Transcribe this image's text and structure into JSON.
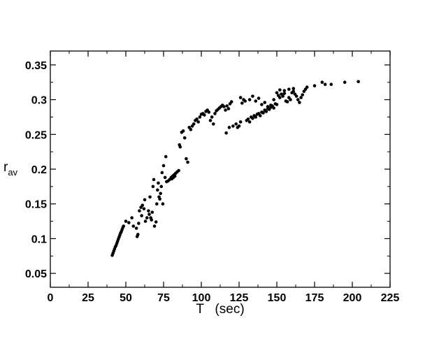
{
  "chart_data": {
    "type": "scatter",
    "title": "",
    "xlabel": "T   (sec)",
    "ylabel": {
      "main": "r",
      "sub": "av"
    },
    "xlim": [
      0,
      225
    ],
    "ylim": [
      0.03,
      0.37
    ],
    "xticks": [
      0,
      25,
      50,
      75,
      100,
      125,
      150,
      175,
      200,
      225
    ],
    "xtick_labels": [
      "0",
      "25",
      "50",
      "75",
      "100",
      "125",
      "150",
      "175",
      "200",
      "225"
    ],
    "yticks": [
      0.05,
      0.1,
      0.15,
      0.2,
      0.25,
      0.3,
      0.35
    ],
    "ytick_labels": [
      "0.05",
      "0.1",
      "0.15",
      "0.2",
      "0.25",
      "0.3",
      "0.35"
    ],
    "grid": false,
    "legend": "none",
    "marker_color": "#000000",
    "series": [
      {
        "points": [
          [
            41,
            0.076
          ],
          [
            41.5,
            0.079
          ],
          [
            42,
            0.082
          ],
          [
            42.5,
            0.085
          ],
          [
            43,
            0.088
          ],
          [
            43.5,
            0.09
          ],
          [
            44,
            0.093
          ],
          [
            44.5,
            0.096
          ],
          [
            45,
            0.099
          ],
          [
            45.5,
            0.102
          ],
          [
            46,
            0.105
          ],
          [
            46.5,
            0.108
          ],
          [
            47,
            0.11
          ],
          [
            47.5,
            0.113
          ],
          [
            48,
            0.116
          ],
          [
            48.5,
            0.118
          ],
          [
            50,
            0.125
          ],
          [
            52,
            0.123
          ],
          [
            54,
            0.13
          ],
          [
            55,
            0.118
          ],
          [
            57,
            0.115
          ],
          [
            57.5,
            0.103
          ],
          [
            58,
            0.106
          ],
          [
            58.5,
            0.122
          ],
          [
            59,
            0.14
          ],
          [
            60,
            0.145
          ],
          [
            60.5,
            0.133
          ],
          [
            61,
            0.148
          ],
          [
            62,
            0.143
          ],
          [
            62.5,
            0.156
          ],
          [
            63,
            0.125
          ],
          [
            64,
            0.13
          ],
          [
            65,
            0.14
          ],
          [
            65.5,
            0.135
          ],
          [
            66,
            0.16
          ],
          [
            66.5,
            0.13
          ],
          [
            67,
            0.127
          ],
          [
            67.5,
            0.138
          ],
          [
            68,
            0.175
          ],
          [
            68.5,
            0.185
          ],
          [
            69,
            0.118
          ],
          [
            70,
            0.124
          ],
          [
            70.5,
            0.15
          ],
          [
            71,
            0.17
          ],
          [
            71.5,
            0.18
          ],
          [
            72,
            0.16
          ],
          [
            72.5,
            0.157
          ],
          [
            73,
            0.165
          ],
          [
            73.5,
            0.175
          ],
          [
            74,
            0.195
          ],
          [
            74.5,
            0.15
          ],
          [
            75,
            0.205
          ],
          [
            76,
            0.188
          ],
          [
            76.5,
            0.218
          ],
          [
            77,
            0.182
          ],
          [
            78,
            0.183
          ],
          [
            79,
            0.185
          ],
          [
            80,
            0.188
          ],
          [
            80.5,
            0.186
          ],
          [
            81,
            0.19
          ],
          [
            81.5,
            0.188
          ],
          [
            82,
            0.192
          ],
          [
            82.5,
            0.19
          ],
          [
            83,
            0.194
          ],
          [
            84,
            0.196
          ],
          [
            85,
            0.198
          ],
          [
            85.5,
            0.235
          ],
          [
            86,
            0.232
          ],
          [
            87,
            0.253
          ],
          [
            88,
            0.255
          ],
          [
            89,
            0.245
          ],
          [
            90,
            0.215
          ],
          [
            91,
            0.21
          ],
          [
            92,
            0.26
          ],
          [
            93,
            0.257
          ],
          [
            94,
            0.262
          ],
          [
            95,
            0.265
          ],
          [
            96,
            0.27
          ],
          [
            97,
            0.272
          ],
          [
            98,
            0.268
          ],
          [
            99,
            0.275
          ],
          [
            100,
            0.279
          ],
          [
            101,
            0.28
          ],
          [
            102,
            0.278
          ],
          [
            103,
            0.283
          ],
          [
            104,
            0.285
          ],
          [
            105,
            0.282
          ],
          [
            106,
            0.27
          ],
          [
            107,
            0.275
          ],
          [
            108,
            0.265
          ],
          [
            109,
            0.28
          ],
          [
            110,
            0.284
          ],
          [
            111,
            0.286
          ],
          [
            112,
            0.288
          ],
          [
            113,
            0.29
          ],
          [
            114,
            0.292
          ],
          [
            115,
            0.29
          ],
          [
            116,
            0.285
          ],
          [
            117,
            0.291
          ],
          [
            118,
            0.287
          ],
          [
            119,
            0.294
          ],
          [
            120,
            0.297
          ],
          [
            116.5,
            0.252
          ],
          [
            118.5,
            0.26
          ],
          [
            121,
            0.262
          ],
          [
            123,
            0.265
          ],
          [
            124,
            0.26
          ],
          [
            125,
            0.262
          ],
          [
            126,
            0.268
          ],
          [
            127,
            0.295
          ],
          [
            128,
            0.3
          ],
          [
            129,
            0.298
          ],
          [
            130,
            0.27
          ],
          [
            131,
            0.272
          ],
          [
            132,
            0.268
          ],
          [
            133,
            0.275
          ],
          [
            134,
            0.273
          ],
          [
            135,
            0.277
          ],
          [
            136,
            0.275
          ],
          [
            137,
            0.279
          ],
          [
            138,
            0.28
          ],
          [
            139,
            0.277
          ],
          [
            140,
            0.282
          ],
          [
            141,
            0.281
          ],
          [
            142,
            0.285
          ],
          [
            143,
            0.283
          ],
          [
            144,
            0.287
          ],
          [
            145,
            0.286
          ],
          [
            146,
            0.289
          ],
          [
            147,
            0.291
          ],
          [
            148,
            0.288
          ],
          [
            149,
            0.294
          ],
          [
            150,
            0.293
          ],
          [
            132,
            0.3
          ],
          [
            134,
            0.305
          ],
          [
            136,
            0.298
          ],
          [
            138,
            0.302
          ],
          [
            140,
            0.293
          ],
          [
            142,
            0.296
          ],
          [
            144,
            0.29
          ],
          [
            146,
            0.292
          ],
          [
            148,
            0.3
          ],
          [
            126,
            0.303
          ],
          [
            150,
            0.31
          ],
          [
            151,
            0.306
          ],
          [
            152,
            0.303
          ],
          [
            153,
            0.308
          ],
          [
            154,
            0.305
          ],
          [
            155,
            0.309
          ],
          [
            156,
            0.298
          ],
          [
            157,
            0.297
          ],
          [
            158,
            0.303
          ],
          [
            159,
            0.3
          ],
          [
            160,
            0.31
          ],
          [
            161,
            0.312
          ],
          [
            162,
            0.308
          ],
          [
            163,
            0.305
          ],
          [
            164,
            0.3
          ],
          [
            165,
            0.296
          ],
          [
            166,
            0.303
          ],
          [
            167,
            0.307
          ],
          [
            168,
            0.312
          ],
          [
            169,
            0.315
          ],
          [
            170,
            0.318
          ],
          [
            152,
            0.314
          ],
          [
            155,
            0.313
          ],
          [
            158,
            0.315
          ],
          [
            161,
            0.316
          ],
          [
            175,
            0.32
          ],
          [
            180,
            0.325
          ],
          [
            182,
            0.322
          ],
          [
            186,
            0.322
          ],
          [
            195,
            0.325
          ],
          [
            204,
            0.326
          ]
        ]
      }
    ]
  }
}
